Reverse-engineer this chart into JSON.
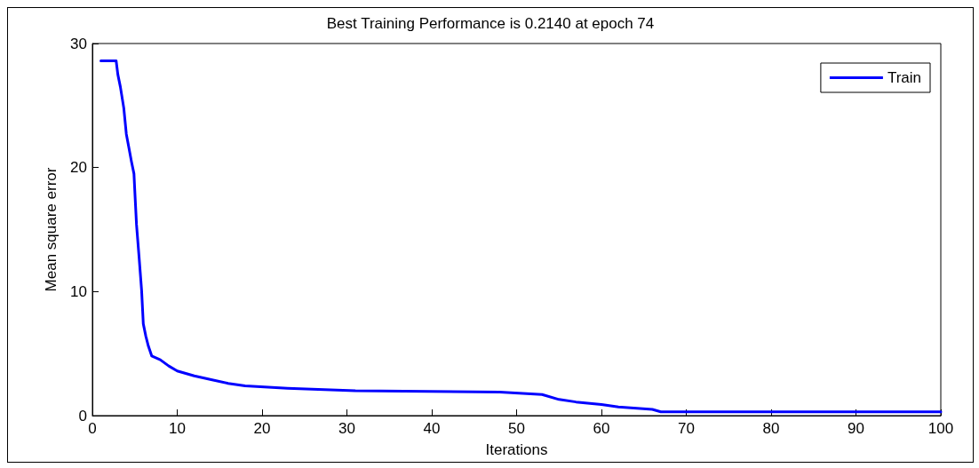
{
  "chart_data": {
    "type": "line",
    "title": "Best Training Performance is 0.2140 at epoch 74",
    "xlabel": "Iterations",
    "ylabel": "Mean square error",
    "xlim": [
      0,
      100
    ],
    "xticks": [
      0,
      10,
      20,
      30,
      40,
      50,
      60,
      70,
      80,
      90,
      100
    ],
    "ylim": [
      0,
      30
    ],
    "yticks": [
      0,
      10,
      20,
      30
    ],
    "grid": false,
    "legend": "top right",
    "line_style": "solid",
    "marker": "none",
    "x": [
      1,
      2.8,
      3,
      3.3,
      3.7,
      4,
      4.3,
      4.6,
      4.9,
      5,
      5.2,
      5.5,
      5.8,
      6,
      6.3,
      6.6,
      7,
      8,
      9,
      10,
      12,
      14,
      16,
      18,
      23,
      31,
      48,
      53,
      55,
      57,
      60,
      62,
      66,
      67,
      100
    ],
    "series": [
      {
        "name": "Train",
        "color": "#0000ff",
        "values": [
          28.6,
          28.6,
          27.5,
          26.5,
          24.8,
          22.7,
          21.6,
          20.5,
          19.5,
          18.1,
          15.4,
          12.8,
          10.1,
          7.4,
          6.4,
          5.6,
          4.8,
          4.5,
          4.0,
          3.6,
          3.2,
          2.9,
          2.6,
          2.4,
          2.2,
          2.0,
          1.9,
          1.7,
          1.3,
          1.1,
          0.9,
          0.7,
          0.5,
          0.3,
          0.3
        ]
      }
    ]
  }
}
